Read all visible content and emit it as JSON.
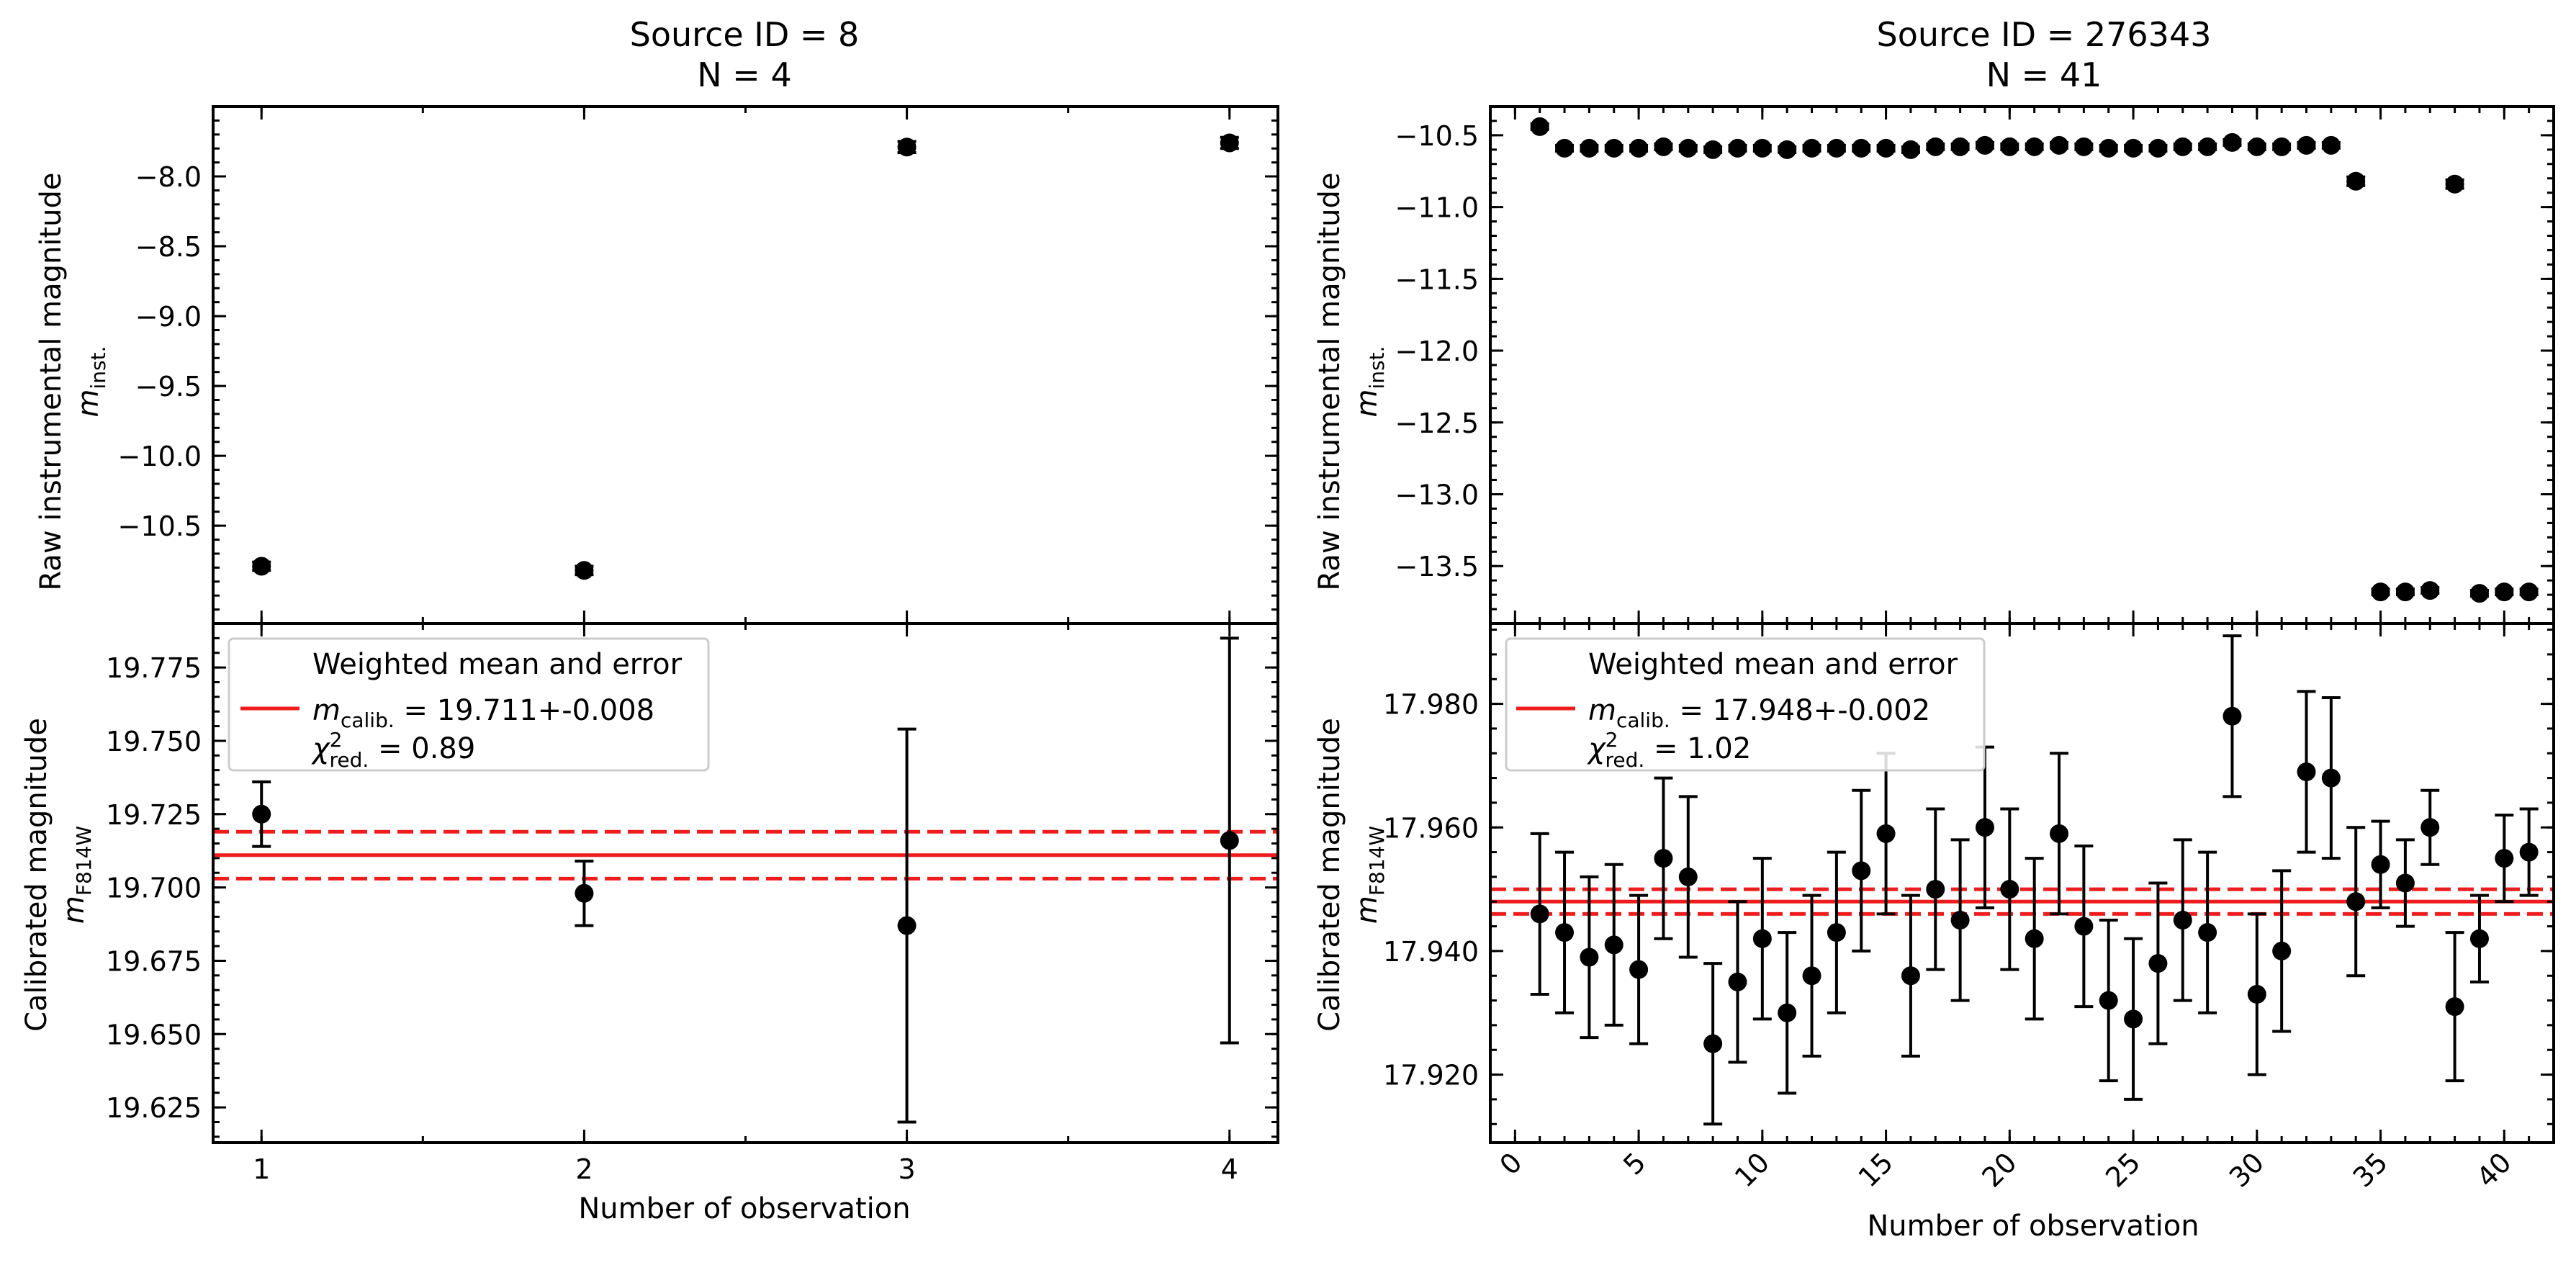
{
  "chart_data": [
    {
      "type": "scatter",
      "title_line1": "Source ID = 8",
      "title_line2": "N = 4",
      "xlabel": "Number of observation",
      "xlim": [
        0.85,
        4.15
      ],
      "xticks": [
        "1",
        "2",
        "3",
        "4"
      ],
      "x_tick_rotated": false,
      "top": {
        "ylabel_line1": "Raw instrumental magnitude",
        "ylabel_line2": "m",
        "ylabel_sub": "inst.",
        "ylim": [
          -11.2,
          -7.5
        ],
        "inverted": true,
        "yticks": [
          "-8.0",
          "-8.5",
          "-9.0",
          "-9.5",
          "-10.0",
          "-10.5"
        ],
        "x": [
          1,
          2,
          3,
          4
        ],
        "y": [
          -10.79,
          -10.82,
          -7.79,
          -7.76
        ],
        "yerr": [
          0.03,
          0.03,
          0.04,
          0.04
        ]
      },
      "bottom": {
        "ylabel_line1": "Calibrated magnitude",
        "ylabel_line2": "m",
        "ylabel_sub": "F814W",
        "ylim": [
          19.613,
          19.79
        ],
        "yticks": [
          "19.625",
          "19.650",
          "19.675",
          "19.700",
          "19.725",
          "19.750",
          "19.775"
        ],
        "x": [
          1,
          2,
          3,
          4
        ],
        "y": [
          19.725,
          19.698,
          19.687,
          19.716
        ],
        "yerr": [
          0.011,
          0.011,
          0.067,
          0.069
        ],
        "mean": 19.711,
        "mean_err": 0.008,
        "legend": {
          "title": "Weighted mean and error",
          "mean_label_sym": "m",
          "mean_label_sub": "calib.",
          "mean_label_value": " = 19.711+-0.008",
          "chi_label_sym": "χ",
          "chi_label_sup": "2",
          "chi_label_sub": "red.",
          "chi_label_value": " = 0.89"
        }
      },
      "colors": {
        "points": "#000000",
        "mean_line": "#ee1c1c"
      }
    },
    {
      "type": "scatter",
      "title_line1": "Source ID = 276343",
      "title_line2": "N = 41",
      "xlabel": "Number of observation",
      "xlim": [
        -1,
        42
      ],
      "xticks": [
        "0",
        "5",
        "10",
        "15",
        "20",
        "25",
        "30",
        "35",
        "40"
      ],
      "x_tick_rotated": true,
      "top": {
        "ylabel_line1": "Raw instrumental magnitude",
        "ylabel_line2": "m",
        "ylabel_sub": "inst.",
        "ylim": [
          -13.9,
          -10.3
        ],
        "inverted": true,
        "yticks": [
          "-10.5",
          "-11.0",
          "-11.5",
          "-12.0",
          "-12.5",
          "-13.0",
          "-13.5"
        ],
        "x": [
          1,
          2,
          3,
          4,
          5,
          6,
          7,
          8,
          9,
          10,
          11,
          12,
          13,
          14,
          15,
          16,
          17,
          18,
          19,
          20,
          21,
          22,
          23,
          24,
          25,
          26,
          27,
          28,
          29,
          30,
          31,
          32,
          33,
          34,
          35,
          36,
          37,
          38,
          39,
          40,
          41
        ],
        "y": [
          -10.44,
          -10.59,
          -10.59,
          -10.59,
          -10.59,
          -10.58,
          -10.59,
          -10.6,
          -10.59,
          -10.59,
          -10.6,
          -10.59,
          -10.59,
          -10.59,
          -10.59,
          -10.6,
          -10.58,
          -10.58,
          -10.57,
          -10.58,
          -10.58,
          -10.57,
          -10.58,
          -10.59,
          -10.59,
          -10.59,
          -10.58,
          -10.58,
          -10.55,
          -10.58,
          -10.58,
          -10.57,
          -10.57,
          -10.82,
          -13.68,
          -13.68,
          -13.67,
          -10.84,
          -13.69,
          -13.68,
          -13.68
        ],
        "yerr": [
          0.02,
          0.02,
          0.02,
          0.02,
          0.02,
          0.02,
          0.02,
          0.02,
          0.02,
          0.02,
          0.02,
          0.02,
          0.02,
          0.02,
          0.02,
          0.02,
          0.02,
          0.02,
          0.02,
          0.02,
          0.02,
          0.02,
          0.02,
          0.02,
          0.02,
          0.02,
          0.02,
          0.02,
          0.02,
          0.02,
          0.02,
          0.02,
          0.02,
          0.03,
          0.02,
          0.02,
          0.02,
          0.03,
          0.02,
          0.02,
          0.02
        ]
      },
      "bottom": {
        "ylabel_line1": "Calibrated magnitude",
        "ylabel_line2": "m",
        "ylabel_sub": "F814W",
        "ylim": [
          17.909,
          17.993
        ],
        "yticks": [
          "17.920",
          "17.940",
          "17.960",
          "17.980"
        ],
        "x": [
          1,
          2,
          3,
          4,
          5,
          6,
          7,
          8,
          9,
          10,
          11,
          12,
          13,
          14,
          15,
          16,
          17,
          18,
          19,
          20,
          21,
          22,
          23,
          24,
          25,
          26,
          27,
          28,
          29,
          30,
          31,
          32,
          33,
          34,
          35,
          36,
          37,
          38,
          39,
          40,
          41
        ],
        "y": [
          17.946,
          17.943,
          17.939,
          17.941,
          17.937,
          17.955,
          17.952,
          17.925,
          17.935,
          17.942,
          17.93,
          17.936,
          17.943,
          17.953,
          17.959,
          17.936,
          17.95,
          17.945,
          17.96,
          17.95,
          17.942,
          17.959,
          17.944,
          17.932,
          17.929,
          17.938,
          17.945,
          17.943,
          17.978,
          17.933,
          17.94,
          17.969,
          17.968,
          17.948,
          17.954,
          17.951,
          17.96,
          17.931,
          17.942,
          17.955,
          17.956
        ],
        "yerr": [
          0.013,
          0.013,
          0.013,
          0.013,
          0.012,
          0.013,
          0.013,
          0.013,
          0.013,
          0.013,
          0.013,
          0.013,
          0.013,
          0.013,
          0.013,
          0.013,
          0.013,
          0.013,
          0.013,
          0.013,
          0.013,
          0.013,
          0.013,
          0.013,
          0.013,
          0.013,
          0.013,
          0.013,
          0.013,
          0.013,
          0.013,
          0.013,
          0.013,
          0.012,
          0.007,
          0.007,
          0.006,
          0.012,
          0.007,
          0.007,
          0.007
        ],
        "mean": 17.948,
        "mean_err": 0.002,
        "legend": {
          "title": "Weighted mean and error",
          "mean_label_sym": "m",
          "mean_label_sub": "calib.",
          "mean_label_value": " = 17.948+-0.002",
          "chi_label_sym": "χ",
          "chi_label_sup": "2",
          "chi_label_sub": "red.",
          "chi_label_value": " = 1.02"
        }
      },
      "colors": {
        "points": "#000000",
        "mean_line": "#ee1c1c"
      }
    }
  ]
}
